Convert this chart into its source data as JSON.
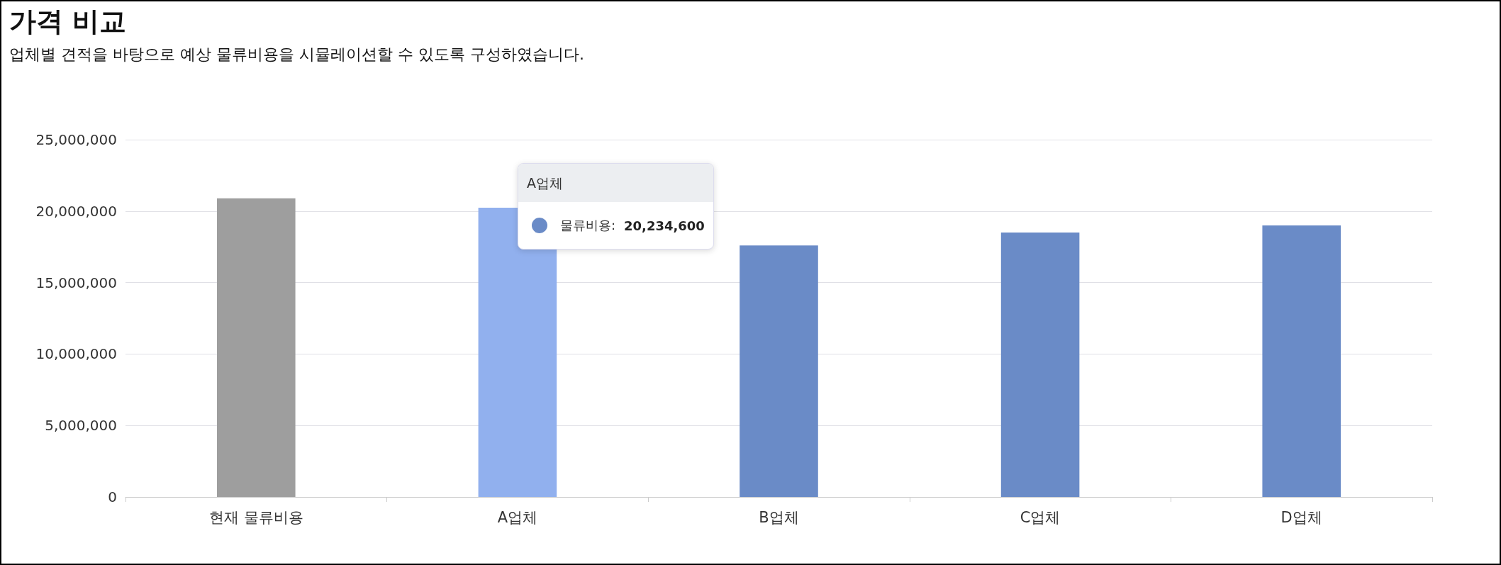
{
  "chart_data": {
    "type": "bar",
    "title": "가격 비교",
    "subtitle": "업체별 견적을 바탕으로 예상 물류비용을 시뮬레이션할 수 있도록 구성하였습니다.",
    "categories": [
      "현재 물류비용",
      "A업체",
      "B업체",
      "C업체",
      "D업체"
    ],
    "series": [
      {
        "name": "물류비용:",
        "color": "#6a8bc7",
        "colors": [
          "#9e9e9e",
          "#91b0ee",
          "#6a8bc7",
          "#6a8bc7",
          "#6a8bc7"
        ],
        "values": [
          20900000,
          20234600,
          17600000,
          18500000,
          19000000
        ]
      }
    ],
    "annotations": [
      "A업체",
      "20,234,600"
    ],
    "ylim": [
      0,
      25000000
    ],
    "yticks": [
      {
        "value": 0,
        "label": "0"
      },
      {
        "value": 5000000,
        "label": "5,000,000"
      },
      {
        "value": 10000000,
        "label": "10,000,000"
      },
      {
        "value": 15000000,
        "label": "15,000,000"
      },
      {
        "value": 20000000,
        "label": "20,000,000"
      },
      {
        "value": 25000000,
        "label": "25,000,000"
      }
    ],
    "grid": "y",
    "legend": "top"
  }
}
